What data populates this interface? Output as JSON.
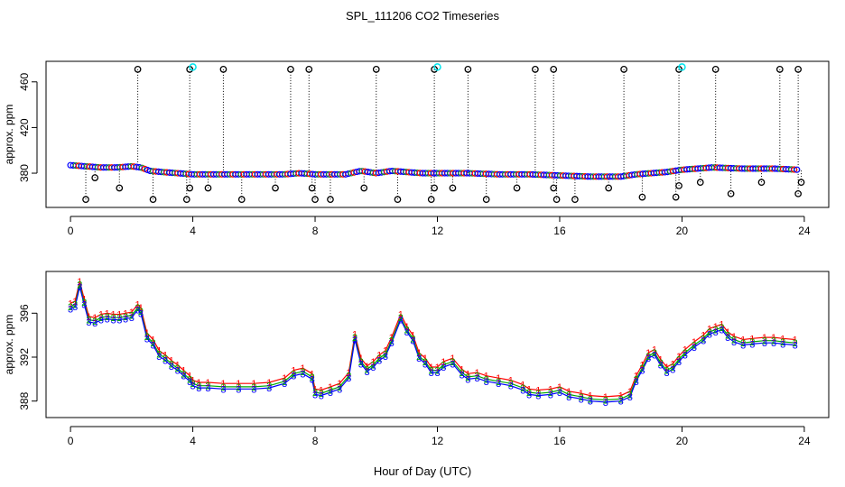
{
  "chart_data": {
    "title": "SPL_111206  CO2 Timeseries",
    "xlabel": "Hour of Day (UTC)",
    "panels": [
      {
        "type": "scatter",
        "ylabel": "approx. ppm",
        "xlim": [
          -0.8,
          24.8
        ],
        "ylim": [
          350,
          478
        ],
        "x_ticks": [
          0,
          4,
          8,
          12,
          16,
          20,
          24
        ],
        "y_ticks": [
          380,
          420,
          460
        ],
        "series": [
          {
            "name": "baseline",
            "color": "#0000ff",
            "points": [
              [
                0.0,
                387
              ],
              [
                0.5,
                386
              ],
              [
                1.0,
                385
              ],
              [
                1.5,
                385
              ],
              [
                2.0,
                386
              ],
              [
                2.3,
                385
              ],
              [
                2.6,
                382
              ],
              [
                3.0,
                381
              ],
              [
                3.5,
                380
              ],
              [
                4.0,
                379
              ],
              [
                5.0,
                379
              ],
              [
                6.0,
                379
              ],
              [
                7.0,
                379
              ],
              [
                7.5,
                380
              ],
              [
                8.0,
                379
              ],
              [
                9.0,
                379
              ],
              [
                9.5,
                382
              ],
              [
                10.0,
                380
              ],
              [
                10.5,
                382
              ],
              [
                11.0,
                381
              ],
              [
                11.5,
                380
              ],
              [
                12.0,
                380
              ],
              [
                13.0,
                380
              ],
              [
                14.0,
                379
              ],
              [
                15.0,
                379
              ],
              [
                16.0,
                378
              ],
              [
                17.0,
                377
              ],
              [
                18.0,
                377
              ],
              [
                18.5,
                379
              ],
              [
                19.0,
                380
              ],
              [
                19.5,
                381
              ],
              [
                20.0,
                383
              ],
              [
                20.5,
                384
              ],
              [
                21.0,
                385
              ],
              [
                22.0,
                384
              ],
              [
                23.0,
                384
              ],
              [
                23.8,
                383
              ]
            ]
          },
          {
            "name": "spikes_high",
            "color": "#000000",
            "values_y": 471,
            "x": [
              2.2,
              3.9,
              5.0,
              7.2,
              7.8,
              10.0,
              11.9,
              13.0,
              15.2,
              15.8,
              18.1,
              19.9,
              21.1,
              23.2,
              23.8
            ]
          },
          {
            "name": "spikes_low",
            "color": "#000000",
            "points": [
              [
                0.5,
                357
              ],
              [
                0.8,
                376
              ],
              [
                1.6,
                367
              ],
              [
                2.7,
                357
              ],
              [
                3.8,
                357
              ],
              [
                3.9,
                367
              ],
              [
                4.5,
                367
              ],
              [
                5.6,
                357
              ],
              [
                6.7,
                367
              ],
              [
                7.9,
                367
              ],
              [
                8.0,
                357
              ],
              [
                8.5,
                357
              ],
              [
                9.6,
                367
              ],
              [
                10.7,
                357
              ],
              [
                11.8,
                357
              ],
              [
                11.9,
                367
              ],
              [
                12.5,
                367
              ],
              [
                13.6,
                357
              ],
              [
                14.6,
                367
              ],
              [
                15.8,
                367
              ],
              [
                15.9,
                357
              ],
              [
                16.5,
                357
              ],
              [
                17.6,
                367
              ],
              [
                18.7,
                359
              ],
              [
                19.8,
                359
              ],
              [
                19.9,
                369
              ],
              [
                20.6,
                372
              ],
              [
                21.6,
                362
              ],
              [
                22.6,
                372
              ],
              [
                23.8,
                362
              ],
              [
                23.9,
                372
              ]
            ]
          },
          {
            "name": "calibration",
            "color": "#00e5ee",
            "x": [
              4.0,
              12.0,
              20.0
            ],
            "y": [
              473,
              473,
              473
            ]
          }
        ]
      },
      {
        "type": "line",
        "ylabel": "approx. ppm",
        "xlim": [
          -0.8,
          24.8
        ],
        "ylim": [
          386.5,
          399.8
        ],
        "x_ticks": [
          0,
          4,
          8,
          12,
          16,
          20,
          24
        ],
        "y_ticks": [
          388,
          392,
          396
        ],
        "x": [
          0.0,
          0.15,
          0.3,
          0.45,
          0.6,
          0.8,
          1.0,
          1.2,
          1.4,
          1.6,
          1.8,
          2.0,
          2.2,
          2.3,
          2.5,
          2.7,
          2.9,
          3.1,
          3.3,
          3.5,
          3.7,
          3.9,
          4.0,
          4.2,
          4.5,
          5.0,
          5.5,
          6.0,
          6.5,
          7.0,
          7.3,
          7.6,
          7.9,
          8.0,
          8.2,
          8.5,
          8.8,
          9.1,
          9.3,
          9.5,
          9.7,
          9.9,
          10.1,
          10.3,
          10.5,
          10.8,
          11.0,
          11.2,
          11.4,
          11.6,
          11.8,
          12.0,
          12.2,
          12.5,
          12.8,
          13.0,
          13.3,
          13.6,
          14.0,
          14.4,
          14.8,
          15.0,
          15.3,
          15.7,
          16.0,
          16.3,
          16.7,
          17.0,
          17.5,
          18.0,
          18.3,
          18.5,
          18.7,
          18.9,
          19.1,
          19.3,
          19.5,
          19.7,
          19.9,
          20.1,
          20.4,
          20.7,
          20.9,
          21.1,
          21.3,
          21.5,
          21.7,
          22.0,
          22.3,
          22.7,
          23.0,
          23.3,
          23.7
        ],
        "series": [
          {
            "name": "1",
            "label": "1",
            "color": "#ff0000",
            "values": [
              396.9,
              397.1,
              398.9,
              397.3,
              395.7,
              395.6,
              395.9,
              396.0,
              395.9,
              395.9,
              396.0,
              396.1,
              396.8,
              396.5,
              394.2,
              393.6,
              392.6,
              392.2,
              391.7,
              391.3,
              390.8,
              390.3,
              389.9,
              389.7,
              389.7,
              389.6,
              389.6,
              389.6,
              389.7,
              390.1,
              390.8,
              391.0,
              390.5,
              389.1,
              389.0,
              389.3,
              389.6,
              390.6,
              394.1,
              391.9,
              391.2,
              391.6,
              392.2,
              392.6,
              393.8,
              395.9,
              394.8,
              394.0,
              392.4,
              391.9,
              391.1,
              391.1,
              391.6,
              391.9,
              390.9,
              390.5,
              390.6,
              390.3,
              390.1,
              389.9,
              389.5,
              389.1,
              389.0,
              389.1,
              389.3,
              388.9,
              388.7,
              388.5,
              388.4,
              388.5,
              388.9,
              390.3,
              391.3,
              392.4,
              392.7,
              391.8,
              391.1,
              391.4,
              392.1,
              392.7,
              393.4,
              394.0,
              394.6,
              394.8,
              395.0,
              394.3,
              393.9,
              393.6,
              393.7,
              393.8,
              393.8,
              393.7,
              393.6
            ]
          },
          {
            "name": "2",
            "label": "2",
            "color": "#00aa00",
            "values": [
              396.6,
              396.8,
              398.6,
              397.0,
              395.4,
              395.3,
              395.6,
              395.7,
              395.6,
              395.6,
              395.7,
              395.8,
              396.5,
              396.2,
              393.9,
              393.3,
              392.3,
              391.9,
              391.4,
              391.0,
              390.5,
              390.0,
              389.6,
              389.4,
              389.4,
              389.3,
              389.3,
              389.3,
              389.4,
              389.8,
              390.5,
              390.7,
              390.2,
              388.8,
              388.7,
              389.0,
              389.3,
              390.3,
              393.8,
              391.6,
              390.9,
              391.3,
              391.9,
              392.3,
              393.5,
              395.6,
              394.5,
              393.7,
              392.1,
              391.6,
              390.8,
              390.8,
              391.3,
              391.6,
              390.6,
              390.2,
              390.3,
              390.0,
              389.8,
              389.6,
              389.2,
              388.8,
              388.7,
              388.8,
              389.0,
              388.6,
              388.4,
              388.2,
              388.1,
              388.2,
              388.6,
              390.0,
              391.0,
              392.1,
              392.4,
              391.5,
              390.8,
              391.1,
              391.8,
              392.4,
              393.1,
              393.7,
              394.3,
              394.5,
              394.7,
              394.0,
              393.6,
              393.3,
              393.4,
              393.5,
              393.5,
              393.4,
              393.3
            ]
          },
          {
            "name": "3",
            "label": "3",
            "color": "#0000ff",
            "values": [
              396.4,
              396.6,
              398.4,
              396.8,
              395.2,
              395.1,
              395.4,
              395.5,
              395.4,
              395.4,
              395.5,
              395.6,
              396.3,
              396.0,
              393.7,
              393.1,
              392.1,
              391.7,
              391.2,
              390.8,
              390.3,
              389.8,
              389.4,
              389.2,
              389.2,
              389.1,
              389.1,
              389.1,
              389.2,
              389.6,
              390.3,
              390.5,
              390.0,
              388.6,
              388.5,
              388.8,
              389.1,
              390.1,
              393.6,
              391.4,
              390.7,
              391.1,
              391.7,
              392.1,
              393.3,
              395.4,
              394.3,
              393.5,
              391.9,
              391.4,
              390.6,
              390.6,
              391.1,
              391.4,
              390.4,
              390.0,
              390.1,
              389.8,
              389.6,
              389.4,
              389.0,
              388.6,
              388.5,
              388.6,
              388.8,
              388.4,
              388.2,
              388.0,
              387.9,
              388.0,
              388.4,
              389.8,
              390.8,
              391.9,
              392.2,
              391.3,
              390.6,
              390.9,
              391.6,
              392.2,
              392.9,
              393.5,
              394.1,
              394.3,
              394.5,
              393.8,
              393.4,
              393.1,
              393.2,
              393.3,
              393.3,
              393.2,
              393.1
            ]
          }
        ]
      }
    ]
  }
}
